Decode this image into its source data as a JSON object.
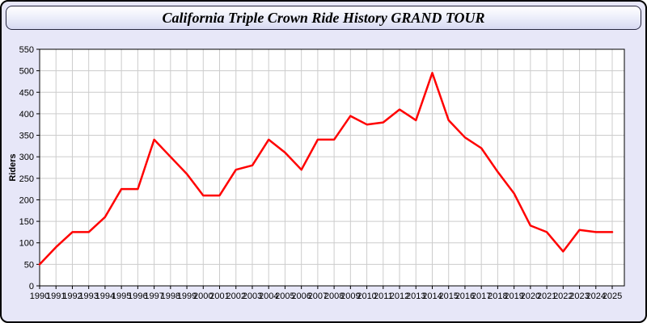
{
  "window": {
    "title": "California Triple Crown Ride History GRAND TOUR"
  },
  "chart_data": {
    "type": "line",
    "title": "California Triple Crown Ride History GRAND TOUR",
    "xlabel": "",
    "ylabel": "Riders",
    "x": [
      1990,
      1991,
      1992,
      1993,
      1994,
      1995,
      1996,
      1997,
      1998,
      1999,
      2000,
      2001,
      2002,
      2003,
      2004,
      2005,
      2006,
      2007,
      2008,
      2009,
      2010,
      2011,
      2012,
      2013,
      2014,
      2015,
      2016,
      2017,
      2018,
      2019,
      2020,
      2021,
      2022,
      2023,
      2024,
      2025
    ],
    "values": [
      50,
      90,
      125,
      125,
      160,
      225,
      225,
      340,
      300,
      260,
      210,
      210,
      270,
      280,
      340,
      310,
      270,
      340,
      340,
      395,
      375,
      380,
      410,
      385,
      495,
      385,
      345,
      320,
      265,
      215,
      140,
      125,
      80,
      130,
      125,
      125
    ],
    "ylim": [
      0,
      550
    ],
    "y_ticks": [
      0,
      50,
      100,
      150,
      200,
      250,
      300,
      350,
      400,
      450,
      500,
      550
    ],
    "grid": true,
    "legend": "none"
  },
  "colors": {
    "page_background": "#e7e7f8",
    "outer_border": "#000000",
    "titlebar_gradient_top": "#ffffff",
    "titlebar_gradient_bottom": "#d7d9f2",
    "titlebar_border": "#26263f",
    "plot_background": "#ffffff",
    "grid_line": "#cccccc",
    "axis_line": "#000000",
    "tick_label": "#000000",
    "ride_line": "#ff0000"
  }
}
